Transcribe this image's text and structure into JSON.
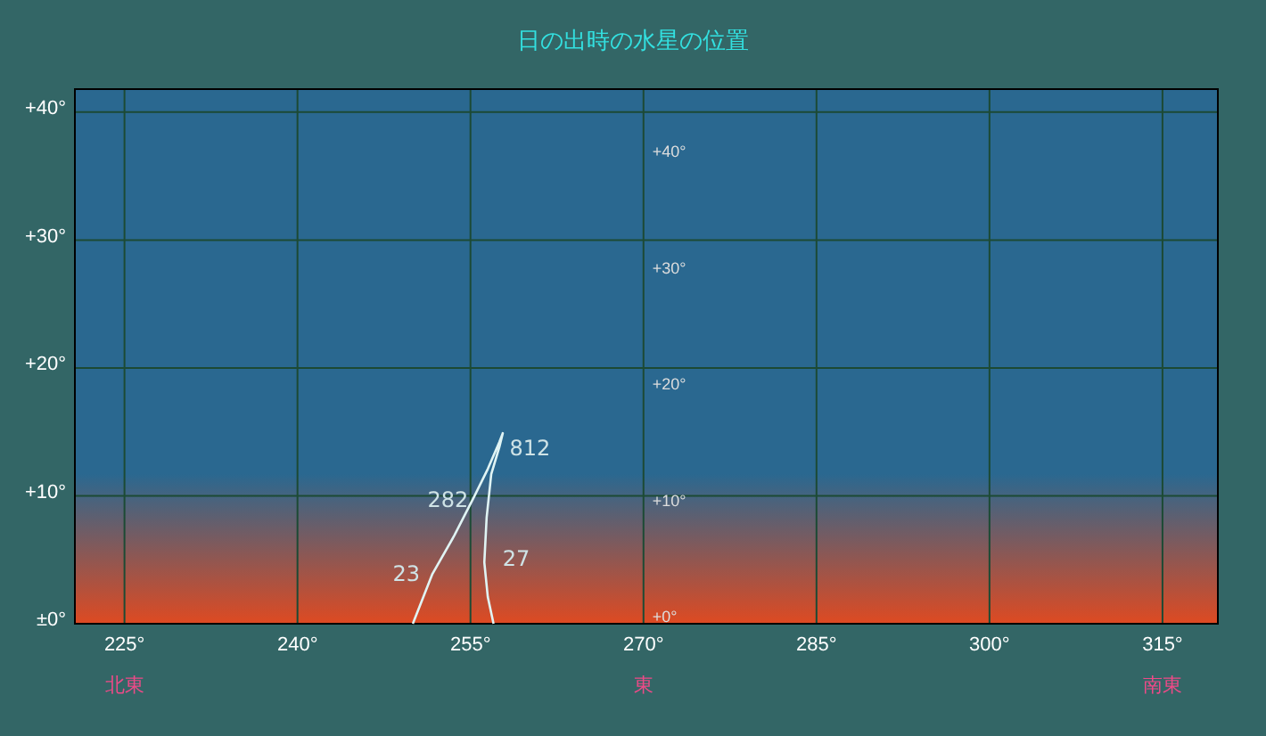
{
  "chart_data": {
    "type": "line",
    "title": "日の出時の水星の位置",
    "xlim": [
      220.7,
      319.8
    ],
    "xticks": [
      {
        "value": 225,
        "label": "225°\n北東"
      },
      {
        "value": 240,
        "label": "240°"
      },
      {
        "value": 255,
        "label": "255°"
      },
      {
        "value": 270,
        "label": "270°\n東"
      },
      {
        "value": 285,
        "label": "285°"
      },
      {
        "value": 300,
        "label": "300°"
      },
      {
        "value": 315,
        "label": "315°\n南東"
      }
    ],
    "ylim": [
      0,
      41.8
    ],
    "yticks": [
      {
        "value": 0,
        "label": "±0°"
      },
      {
        "value": 10,
        "label": "+10°"
      },
      {
        "value": 20,
        "label": "+20°"
      },
      {
        "value": 30,
        "label": "+30°"
      },
      {
        "value": 40,
        "label": "+40°"
      }
    ],
    "y2lim": [
      0,
      46
    ],
    "y2ticks": [
      {
        "value": 0,
        "label": "+0°"
      },
      {
        "value": 10,
        "label": "+10°"
      },
      {
        "value": 20,
        "label": "+20°"
      },
      {
        "value": 30,
        "label": "+30°"
      },
      {
        "value": 40,
        "label": "+40°"
      }
    ],
    "grid": true,
    "marker": "none",
    "line_style": "solid",
    "series": [
      {
        "color": "#e0f4f4",
        "x": [
          250.0,
          251.7,
          253.6,
          255.3,
          256.5,
          257.5,
          257.8,
          257.5,
          256.8,
          256.4,
          256.2,
          256.5,
          257.0
        ],
        "values": [
          0,
          3.9,
          6.9,
          9.9,
          12.1,
          14.2,
          14.9,
          13.8,
          11.7,
          8.3,
          4.8,
          2.1,
          0
        ]
      }
    ],
    "annotations": [
      {
        "text": "23",
        "x": 251.7,
        "y": 3.9
      },
      {
        "text": "282",
        "x": 255.9,
        "y": 9.7
      },
      {
        "text": "812",
        "x": 257.3,
        "y": 13.7
      },
      {
        "text": "27",
        "x": 256.7,
        "y": 5.1
      }
    ]
  }
}
